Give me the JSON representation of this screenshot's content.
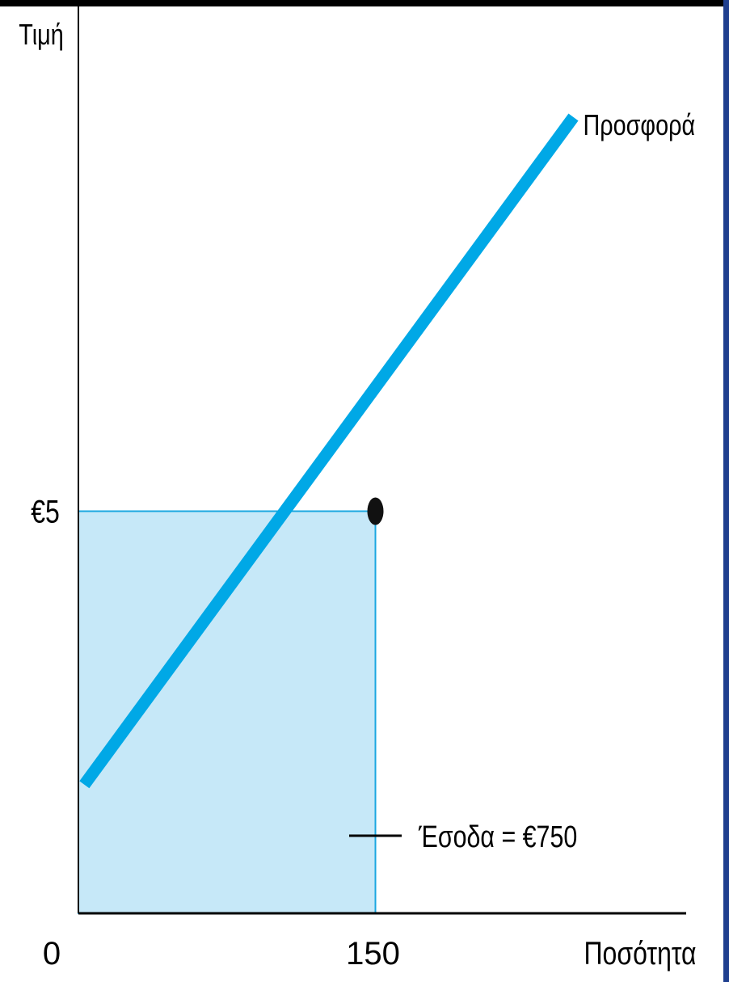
{
  "chart_data": {
    "type": "line",
    "title": "",
    "xlabel": "Ποσότητα",
    "ylabel": "Τιμή",
    "x_ticks": [
      {
        "value": 0,
        "label": "0"
      },
      {
        "value": 150,
        "label": "150"
      }
    ],
    "y_ticks": [
      {
        "value": 5,
        "label": "€5"
      }
    ],
    "series": [
      {
        "name": "Προσφορά",
        "x": [
          3,
          250
        ],
        "y": [
          1.6,
          9.9
        ],
        "color": "#00a8e6"
      }
    ],
    "highlight_point": {
      "x": 150,
      "y": 5
    },
    "shaded_area": {
      "x": [
        0,
        150
      ],
      "y": [
        0,
        5
      ],
      "color": "#c6e8f8",
      "label": "Έσοδα = €750"
    },
    "xlim": [
      0,
      260
    ],
    "ylim": [
      0,
      14.96
    ],
    "grid": false,
    "legend": "none"
  }
}
